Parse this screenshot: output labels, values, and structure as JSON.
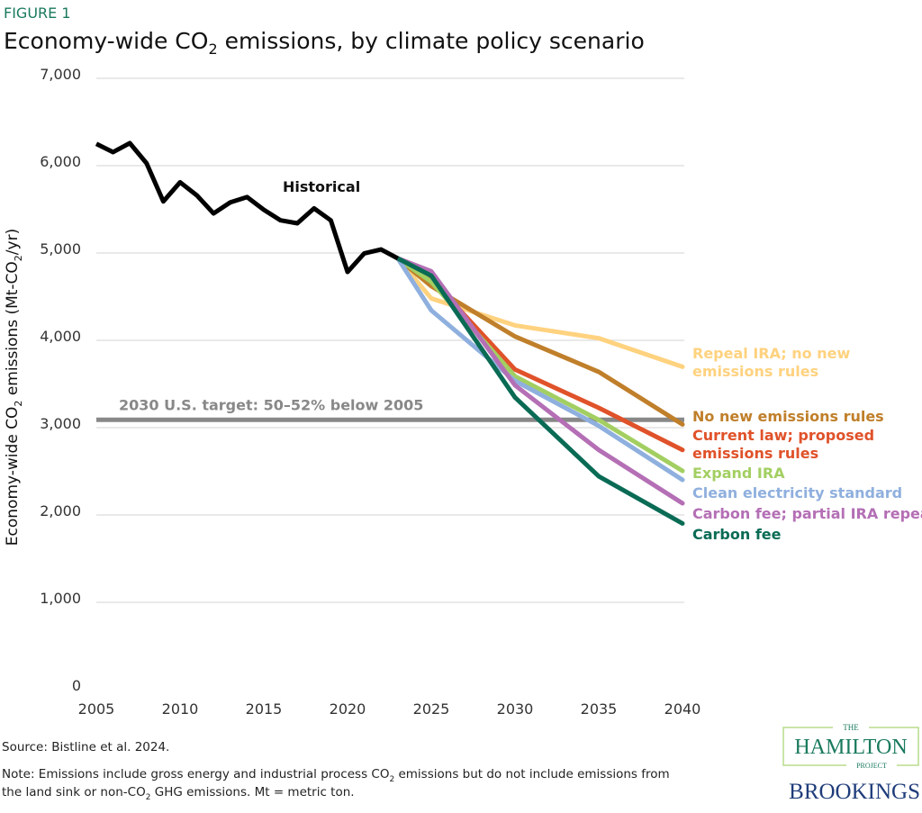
{
  "figure_label": "FIGURE 1",
  "title": {
    "pre": "Economy-wide CO",
    "sub": "2",
    "post": " emissions, by climate policy scenario"
  },
  "chart_data": {
    "type": "line",
    "ylabel": {
      "pre": "Economy-wide CO",
      "sub": "2",
      "mid": " emissions (Mt-CO",
      "sub2": "2",
      "post": "/yr)"
    },
    "xlabel": "",
    "xlim": [
      2005,
      2040
    ],
    "ylim": [
      0,
      7000
    ],
    "x_ticks": [
      "2005",
      "2010",
      "2015",
      "2020",
      "2025",
      "2030",
      "2035",
      "2040"
    ],
    "y_ticks": [
      "0",
      "1,000",
      "2,000",
      "3,000",
      "4,000",
      "5,000",
      "6,000",
      "7,000"
    ],
    "y_tick_values": [
      0,
      1000,
      2000,
      3000,
      4000,
      5000,
      6000,
      7000
    ],
    "x_tick_values": [
      2005,
      2010,
      2015,
      2020,
      2025,
      2030,
      2035,
      2040
    ],
    "grid": "horizontal",
    "historical": {
      "name": "Historical",
      "color": "#000000",
      "x": [
        2005,
        2006,
        2007,
        2008,
        2009,
        2010,
        2011,
        2012,
        2013,
        2014,
        2015,
        2016,
        2017,
        2018,
        2019,
        2020,
        2021,
        2022,
        2023
      ],
      "values": [
        6250,
        6155,
        6258,
        6027,
        5590,
        5810,
        5660,
        5453,
        5580,
        5640,
        5495,
        5374,
        5340,
        5511,
        5374,
        4783,
        4996,
        5041,
        4938
      ]
    },
    "target": {
      "label": "2030 U.S. target: 50–52% below 2005",
      "value": 3090,
      "color": "#888888"
    },
    "scenario_x": [
      2023,
      2025,
      2030,
      2035,
      2040
    ],
    "series": [
      {
        "name": "Repeal IRA; no new emissions rules",
        "lines": [
          "Repeal IRA; no new",
          "emissions rules"
        ],
        "color": "#ffd27f",
        "values": [
          4938,
          4480,
          4171,
          4024,
          3697
        ]
      },
      {
        "name": "No new emissions rules",
        "lines": [
          "No new emissions rules"
        ],
        "color": "#c07f2a",
        "values": [
          4938,
          4620,
          4044,
          3639,
          3037
        ]
      },
      {
        "name": "Current law; proposed emissions rules",
        "lines": [
          "Current law; proposed",
          "emissions rules"
        ],
        "color": "#e0522a",
        "values": [
          4938,
          4700,
          3666,
          3227,
          2745
        ]
      },
      {
        "name": "Expand IRA",
        "lines": [
          "Expand IRA"
        ],
        "color": "#a3cf62",
        "values": [
          4938,
          4670,
          3588,
          3089,
          2505
        ]
      },
      {
        "name": "Clean electricity standard",
        "lines": [
          "Clean electricity standard"
        ],
        "color": "#8fb0de",
        "values": [
          4938,
          4343,
          3536,
          3021,
          2402
        ]
      },
      {
        "name": "Carbon fee; partial IRA repeal",
        "lines": [
          "Carbon fee; partial IRA repeal"
        ],
        "color": "#b46fb5",
        "values": [
          4938,
          4790,
          3485,
          2745,
          2134
        ]
      },
      {
        "name": "Carbon fee",
        "lines": [
          "Carbon fee"
        ],
        "color": "#0a6b55",
        "values": [
          4938,
          4740,
          3346,
          2443,
          1903
        ]
      }
    ]
  },
  "source": "Source: Bistline et al. 2024.",
  "note": {
    "l1_pre": "Note: Emissions include gross energy and industrial process CO",
    "l1_sub": "2",
    "l1_post": " emissions but do not include emissions from",
    "l2_pre": "the land sink or non-CO",
    "l2_sub": "2",
    "l2_post": " GHG emissions. Mt = metric ton."
  },
  "logos": {
    "hamilton": [
      "THE",
      "HAMILTON",
      "PROJECT"
    ],
    "brookings": "BROOKINGS",
    "hamilton_color": "#1a7a5e",
    "brookings_color": "#1f3c7a"
  }
}
